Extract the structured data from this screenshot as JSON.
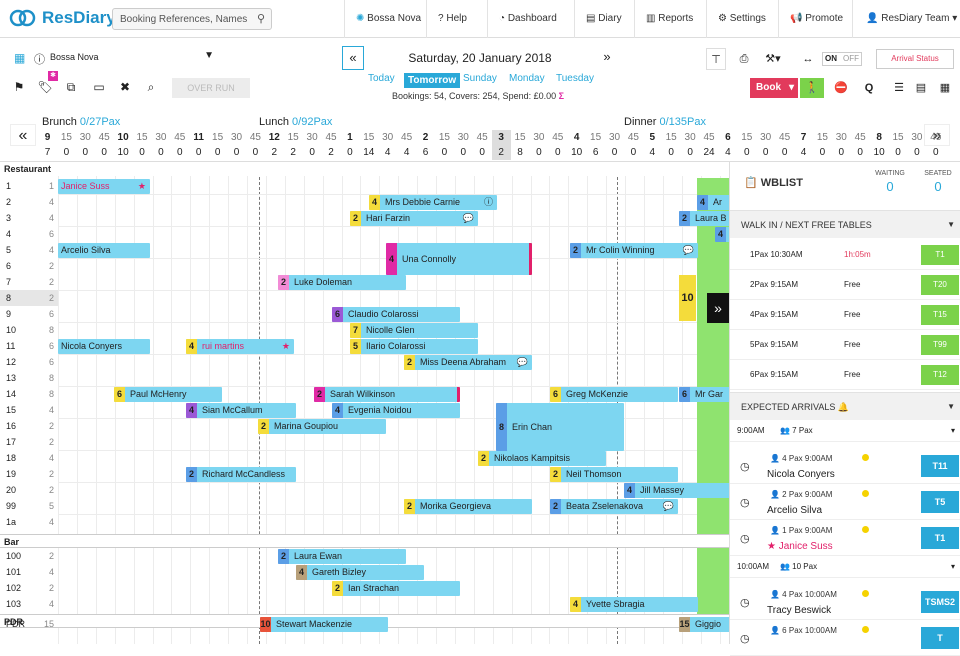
{
  "app": {
    "name": "ResDiary"
  },
  "search": {
    "placeholder": "Booking References, Names"
  },
  "nav": {
    "restaurant": "Bossa Nova",
    "help": "Help",
    "dashboard": "Dashboard",
    "diary": "Diary",
    "reports": "Reports",
    "settings": "Settings",
    "promote": "Promote",
    "team": "ResDiary Team"
  },
  "toolbar": {
    "restaurant_select": "Bossa Nova",
    "over_run": "OVER RUN",
    "date": "Saturday, 20 January 2018",
    "quick": [
      "Today",
      "Tomorrow",
      "Sunday",
      "Monday",
      "Tuesday"
    ],
    "bookings_summary": "Bookings: 54, Covers: 254, Spend: £0.00",
    "on": "ON",
    "off": "OFF",
    "arrival_status": "Arrival Status",
    "book": "Book",
    "q": "Q"
  },
  "services": [
    {
      "name": "Brunch",
      "pax": "0/27Pax"
    },
    {
      "name": "Lunch",
      "pax": "0/92Pax"
    },
    {
      "name": "Dinner",
      "pax": "0/135Pax"
    }
  ],
  "timeline": {
    "times": [
      "9",
      "15",
      "30",
      "45",
      "10",
      "15",
      "30",
      "45",
      "11",
      "15",
      "30",
      "45",
      "12",
      "15",
      "30",
      "45",
      "1",
      "15",
      "30",
      "45",
      "2",
      "15",
      "30",
      "45",
      "3",
      "15",
      "30",
      "45",
      "4",
      "15",
      "30",
      "45",
      "5",
      "15",
      "30",
      "45",
      "6",
      "15",
      "30",
      "45",
      "7",
      "15",
      "30",
      "45",
      "8",
      "15",
      "30",
      "45"
    ],
    "counts": [
      "7",
      "0",
      "0",
      "0",
      "10",
      "0",
      "0",
      "0",
      "0",
      "0",
      "0",
      "0",
      "2",
      "2",
      "0",
      "2",
      "0",
      "14",
      "4",
      "4",
      "6",
      "0",
      "0",
      "0",
      "2",
      "8",
      "0",
      "0",
      "10",
      "6",
      "0",
      "0",
      "4",
      "0",
      "0",
      "24",
      "4",
      "0",
      "0",
      "0",
      "4",
      "0",
      "0",
      "0",
      "10",
      "0",
      "0",
      "0"
    ],
    "selected_index": 24
  },
  "sections": {
    "restaurant": "Restaurant",
    "bar": "Bar",
    "pdr": "PDR"
  },
  "rows": [
    {
      "table": "1",
      "covers": "1"
    },
    {
      "table": "2",
      "covers": "4"
    },
    {
      "table": "3",
      "covers": "4"
    },
    {
      "table": "4",
      "covers": "6"
    },
    {
      "table": "5",
      "covers": "4"
    },
    {
      "table": "6",
      "covers": "2"
    },
    {
      "table": "7",
      "covers": "2"
    },
    {
      "table": "8",
      "covers": "2"
    },
    {
      "table": "9",
      "covers": "6"
    },
    {
      "table": "10",
      "covers": "8"
    },
    {
      "table": "11",
      "covers": "6"
    },
    {
      "table": "12",
      "covers": "6"
    },
    {
      "table": "13",
      "covers": "8"
    },
    {
      "table": "14",
      "covers": "8"
    },
    {
      "table": "15",
      "covers": "4"
    },
    {
      "table": "16",
      "covers": "2"
    },
    {
      "table": "17",
      "covers": "2"
    },
    {
      "table": "18",
      "covers": "4"
    },
    {
      "table": "19",
      "covers": "2"
    },
    {
      "table": "20",
      "covers": "2"
    },
    {
      "table": "99",
      "covers": "5"
    },
    {
      "table": "1a",
      "covers": "4"
    }
  ],
  "bar_rows": [
    {
      "table": "100",
      "covers": "2"
    },
    {
      "table": "101",
      "covers": "4"
    },
    {
      "table": "102",
      "covers": "2"
    },
    {
      "table": "103",
      "covers": "4"
    }
  ],
  "pdr_rows": [
    {
      "table": "PDR",
      "covers": "15"
    }
  ],
  "reservations": [
    {
      "name": "Janice Suss",
      "covers": "1",
      "icon": "star-icon"
    },
    {
      "name": "Arcelio Silva",
      "covers": "2"
    },
    {
      "name": "Nicola Conyers",
      "covers": "4"
    },
    {
      "name": "rui martins",
      "covers": "4",
      "icon": "star-icon"
    },
    {
      "name": "Paul McHenry",
      "covers": "6"
    },
    {
      "name": "Sian McCallum",
      "covers": "4"
    },
    {
      "name": "Marina Goupiou",
      "covers": "2"
    },
    {
      "name": "Richard McCandless",
      "covers": "2"
    },
    {
      "name": "Mrs Debbie Carnie",
      "covers": "4",
      "icon": "info-icon"
    },
    {
      "name": "Hari Farzin",
      "covers": "2",
      "icon": "chat-icon"
    },
    {
      "name": "Una Connolly",
      "covers": "4"
    },
    {
      "name": "Luke Doleman",
      "covers": "2"
    },
    {
      "name": "Claudio Colarossi",
      "covers": "6"
    },
    {
      "name": "Nicolle Glen",
      "covers": "7"
    },
    {
      "name": "Ilario Colarossi",
      "covers": "5"
    },
    {
      "name": "Miss Deena Abraham",
      "covers": "2",
      "icon": "chat-icon"
    },
    {
      "name": "Sarah Wilkinson",
      "covers": "2"
    },
    {
      "name": "Evgenia Noidou",
      "covers": "4"
    },
    {
      "name": "Erin Chan",
      "covers": "8"
    },
    {
      "name": "Nikolaos Kampitsis",
      "covers": "2"
    },
    {
      "name": "Neil Thomson",
      "covers": "2"
    },
    {
      "name": "Jill Massey",
      "covers": "4"
    },
    {
      "name": "Morika Georgieva",
      "covers": "2"
    },
    {
      "name": "Beata Zselenakova",
      "covers": "2",
      "icon": "chat-icon"
    },
    {
      "name": "Mr Colin Winning",
      "covers": "2",
      "icon": "chat-icon"
    },
    {
      "name": "Greg McKenzie",
      "covers": "6"
    },
    {
      "name": "Mr Gar",
      "covers": "6"
    },
    {
      "name": "Ar",
      "covers": "4"
    },
    {
      "name": "Laura B",
      "covers": "2"
    },
    {
      "name": "4",
      "covers": "4"
    },
    {
      "name": "Laura Ewan",
      "covers": "2"
    },
    {
      "name": "Gareth Bizley",
      "covers": "4"
    },
    {
      "name": "Ian Strachan",
      "covers": "2"
    },
    {
      "name": "Yvette Sbragia",
      "covers": "4"
    },
    {
      "name": "Stewart Mackenzie",
      "covers": "10"
    },
    {
      "name": "Giggio",
      "covers": "15"
    }
  ],
  "side_tag": "10",
  "wblist": {
    "title": "WBLIST",
    "waiting_label": "WAITING",
    "waiting": "0",
    "seated_label": "SEATED",
    "seated": "0",
    "walkin_header": "WALK IN / NEXT FREE TABLES",
    "walkins": [
      {
        "desc": "1Pax 10:30AM",
        "status": "1h:05m",
        "table": "T1"
      },
      {
        "desc": "2Pax 9:15AM",
        "status": "Free",
        "table": "T20"
      },
      {
        "desc": "4Pax 9:15AM",
        "status": "Free",
        "table": "T15"
      },
      {
        "desc": "5Pax 9:15AM",
        "status": "Free",
        "table": "T99"
      },
      {
        "desc": "6Pax 9:15AM",
        "status": "Free",
        "table": "T12"
      }
    ],
    "expected_header": "EXPECTED ARRIVALS",
    "groups": [
      {
        "time": "9:00AM",
        "pax": "7 Pax"
      },
      {
        "time": "10:00AM",
        "pax": "10 Pax"
      }
    ],
    "arrivals": [
      {
        "pax": "4 Pax",
        "time": "9:00AM",
        "name": "Nicola Conyers",
        "table": "T11"
      },
      {
        "pax": "2 Pax",
        "time": "9:00AM",
        "name": "Arcelio Silva",
        "table": "T5"
      },
      {
        "pax": "1 Pax",
        "time": "9:00AM",
        "name": "Janice Suss",
        "table": "T1"
      },
      {
        "pax": "4 Pax",
        "time": "10:00AM",
        "name": "Tracy Beswick",
        "table": "TSMS2"
      },
      {
        "pax": "6 Pax",
        "time": "10:00AM",
        "name": "",
        "table": "T"
      }
    ]
  },
  "colors": {
    "accent": "#29a8d8",
    "booking": "#7dd6f1",
    "book_button": "#e23a5c",
    "walkin": "#7bd24a",
    "green_lane": "#8fe36f"
  }
}
